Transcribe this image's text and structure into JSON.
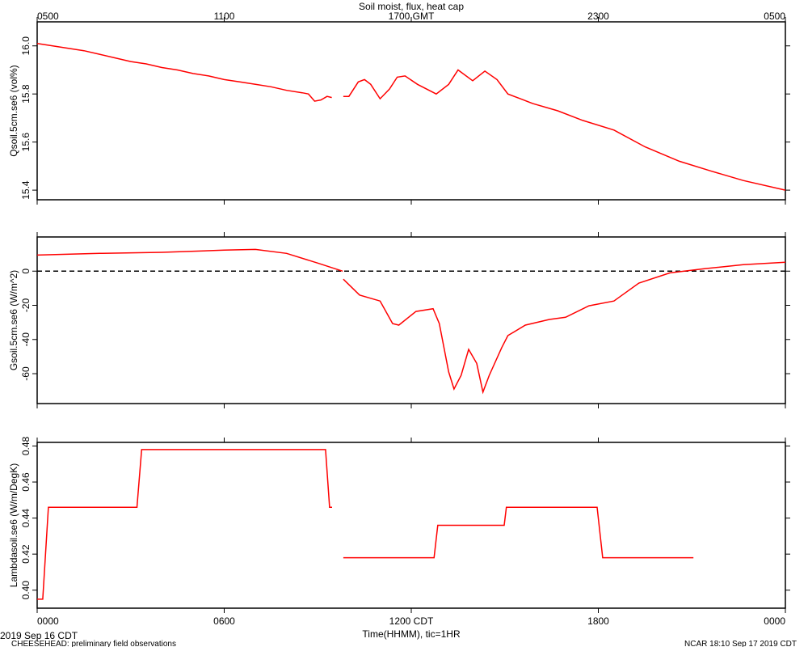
{
  "chart_data": [
    {
      "type": "line",
      "title": "Soil moist, flux, heat cap",
      "ylabel": "Qsoil.5cm.se6 (vol%)",
      "color": "#ff0000",
      "x": [
        0,
        0.5,
        1,
        1.5,
        2,
        2.5,
        3,
        3.5,
        4,
        4.5,
        5,
        5.5,
        6,
        6.5,
        7,
        7.5,
        8,
        8.5,
        8.7,
        8.9,
        9.1,
        9.3,
        9.45,
        9.5,
        9.82,
        10,
        10.3,
        10.5,
        10.7,
        11,
        11.3,
        11.55,
        11.8,
        12.2,
        12.8,
        13.2,
        13.5,
        13.97,
        14.36,
        14.75,
        15.1,
        15.5,
        15.9,
        16.7,
        17.5,
        18.5,
        19.5,
        20.6,
        21.6,
        22.65,
        24
      ],
      "values": [
        16.01,
        16.0,
        15.99,
        15.98,
        15.965,
        15.95,
        15.935,
        15.925,
        15.91,
        15.9,
        15.885,
        15.875,
        15.86,
        15.85,
        15.84,
        15.83,
        15.815,
        15.805,
        15.8,
        15.77,
        15.775,
        15.79,
        15.785,
        null,
        15.79,
        15.79,
        15.85,
        15.86,
        15.84,
        15.78,
        15.82,
        15.87,
        15.875,
        15.84,
        15.8,
        15.84,
        15.9,
        15.855,
        15.895,
        15.86,
        15.8,
        15.78,
        15.76,
        15.73,
        15.69,
        15.65,
        15.58,
        15.52,
        15.48,
        15.44,
        15.4
      ],
      "xlim": [
        0,
        24
      ],
      "xticks": [
        {
          "value": 0,
          "label": "0500"
        },
        {
          "value": 6,
          "label": "1100"
        },
        {
          "value": 12,
          "label": "1700 GMT"
        },
        {
          "value": 18,
          "label": "2300"
        },
        {
          "value": 24,
          "label": "0500"
        }
      ],
      "ylim": [
        15.36,
        16.1
      ],
      "yticks": [
        {
          "value": 16,
          "label": "16.0"
        },
        15.8,
        15.6,
        15.4
      ]
    },
    {
      "type": "line",
      "ylabel": "Gsoil.5cm.se6 (W/m^2)",
      "color": "#ff0000",
      "hline": 0,
      "x": [
        0,
        2,
        4,
        6,
        7,
        8,
        9,
        9.8,
        9.81,
        9.82,
        10.34,
        11,
        11.4,
        11.6,
        12.15,
        12.7,
        12.9,
        13.2,
        13.37,
        13.6,
        13.84,
        14.1,
        14.3,
        14.5,
        14.9,
        15.1,
        15.66,
        16.43,
        16.95,
        17.7,
        18.5,
        19.3,
        20.3,
        21.4,
        22.65,
        24
      ],
      "values": [
        9.4,
        10.4,
        11,
        12.3,
        12.7,
        10.4,
        4.7,
        0,
        null,
        -4.7,
        -14,
        -17.5,
        -30.7,
        -31.6,
        -23.6,
        -22,
        -30.7,
        -59,
        -69,
        -61,
        -45.8,
        -54,
        -70.8,
        -61,
        -44.8,
        -37.7,
        -31.6,
        -28.3,
        -27,
        -20.3,
        -17.5,
        -7,
        -1,
        1.4,
        3.8,
        5.2
      ],
      "xlim": [
        0,
        24
      ],
      "xticks": [
        0,
        6,
        12,
        18,
        24
      ],
      "ylim": [
        -77.5,
        20
      ],
      "yticks": [
        0,
        -20,
        -40,
        -60
      ]
    },
    {
      "type": "line",
      "ylabel": "Lambdasoil.se6 (W/m/DegK)",
      "xlabel": "Time(HHMM), tic=1HR",
      "color": "#ff0000",
      "x": [
        0,
        0.18,
        0.36,
        3.2,
        3.35,
        9.25,
        9.38,
        9.46,
        9.6,
        9.82,
        12.73,
        12.85,
        14.98,
        15.05,
        17.96,
        18.14,
        21.05
      ],
      "values": [
        0.395,
        0.395,
        0.446,
        0.446,
        0.478,
        0.478,
        0.446,
        0.446,
        null,
        0.418,
        0.418,
        0.436,
        0.436,
        0.446,
        0.446,
        0.418,
        0.418
      ],
      "xlim": [
        0,
        24
      ],
      "xticks": [
        {
          "value": 0,
          "label": "0000"
        },
        {
          "value": 6,
          "label": "0600"
        },
        {
          "value": 12,
          "label": "1200 CDT"
        },
        {
          "value": 18,
          "label": "1800"
        },
        {
          "value": 24,
          "label": "0000"
        }
      ],
      "ylim": [
        0.39,
        0.482
      ],
      "yticks": [
        0.48,
        0.46,
        0.44,
        0.42,
        {
          "value": 0.4,
          "label": "0.40"
        }
      ]
    }
  ],
  "footer": {
    "date": "2019 Sep 16 CDT",
    "project": "CHEESEHEAD: preliminary field observations",
    "stamp": "NCAR 18:10 Sep 17 2019 CDT"
  }
}
